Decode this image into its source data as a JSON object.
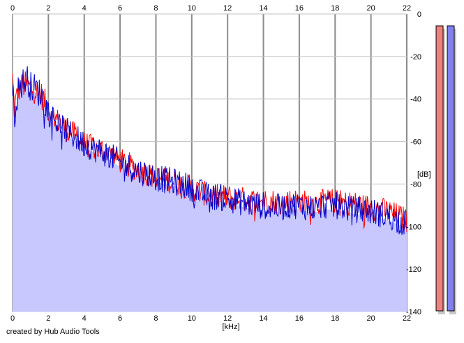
{
  "chart_data": {
    "type": "area",
    "xlabel": "[kHz]",
    "ylabel": "[dB]",
    "xlim": [
      0,
      22
    ],
    "ylim": [
      -140,
      0
    ],
    "x_ticks": [
      "0",
      "2",
      "4",
      "6",
      "8",
      "10",
      "12",
      "14",
      "16",
      "18",
      "20",
      "22"
    ],
    "y_ticks": [
      "0",
      "-20",
      "-40",
      "-60",
      "-80",
      "-100",
      "-120",
      "-140"
    ],
    "grid": true,
    "series": [
      {
        "color": "#ff0000",
        "x": [
          0,
          0.1,
          0.3,
          0.5,
          0.8,
          1.0,
          1.3,
          1.6,
          2.0,
          2.5,
          3.0,
          3.5,
          4.0,
          4.5,
          5.0,
          5.5,
          6.0,
          6.5,
          7.0,
          7.5,
          8.0,
          8.5,
          9.0,
          9.5,
          10.0,
          10.5,
          11.0,
          11.5,
          12.0,
          12.5,
          13.0,
          13.5,
          14.0,
          14.5,
          15.0,
          15.5,
          16.0,
          16.5,
          17.0,
          17.5,
          18.0,
          18.5,
          19.0,
          19.5,
          20.0,
          20.5,
          21.0,
          21.5,
          22.0
        ],
        "values": [
          -30,
          -45,
          -36,
          -34,
          -33,
          -35,
          -36,
          -38,
          -45,
          -50,
          -54,
          -57,
          -61,
          -63,
          -64,
          -66,
          -69,
          -71,
          -73,
          -75,
          -77,
          -78,
          -79,
          -80,
          -82,
          -84,
          -85,
          -86,
          -86,
          -87,
          -87,
          -88,
          -88,
          -88,
          -89,
          -88,
          -88,
          -89,
          -89,
          -88,
          -88,
          -89,
          -89,
          -90,
          -91,
          -92,
          -93,
          -95,
          -97
        ]
      },
      {
        "color": "#0000cc",
        "x": [
          0,
          0.1,
          0.3,
          0.5,
          0.8,
          1.0,
          1.3,
          1.6,
          2.0,
          2.5,
          3.0,
          3.5,
          4.0,
          4.5,
          5.0,
          5.5,
          6.0,
          6.5,
          7.0,
          7.5,
          8.0,
          8.5,
          9.0,
          9.5,
          10.0,
          10.5,
          11.0,
          11.5,
          12.0,
          12.5,
          13.0,
          13.5,
          14.0,
          14.5,
          15.0,
          15.5,
          16.0,
          16.5,
          17.0,
          17.5,
          18.0,
          18.5,
          19.0,
          19.5,
          20.0,
          20.5,
          21.0,
          21.5,
          22.0
        ],
        "values": [
          -35,
          -48,
          -36,
          -33,
          -30,
          -34,
          -35,
          -38,
          -46,
          -51,
          -55,
          -58,
          -61,
          -63,
          -65,
          -67,
          -70,
          -72,
          -74,
          -75,
          -77,
          -78,
          -79,
          -80,
          -82,
          -84,
          -86,
          -86,
          -87,
          -88,
          -89,
          -90,
          -90,
          -91,
          -91,
          -90,
          -90,
          -91,
          -91,
          -90,
          -90,
          -91,
          -92,
          -92,
          -93,
          -94,
          -95,
          -97,
          -99
        ]
      }
    ]
  },
  "footer": {
    "credit": "created by Hub Audio Tools"
  },
  "meters": {
    "left_color": "#f08080",
    "right_color": "#8080f0"
  }
}
